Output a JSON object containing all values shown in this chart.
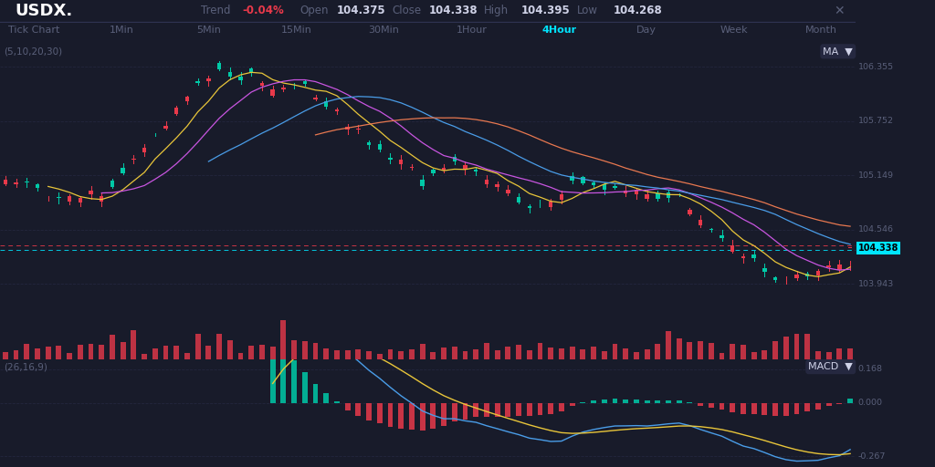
{
  "bg_color": "#181b2a",
  "header_bg": "#1e2235",
  "title": "USDX.",
  "trend_label": "Trend",
  "trend_value": "-0.04%",
  "open_label": "Open",
  "open_value": "104.375",
  "close_label": "Close",
  "close_value": "104.338",
  "high_label": "High",
  "high_value": "104.395",
  "low_label": "Low",
  "low_value": "104.268",
  "timeframes": [
    "Tick Chart",
    "1Min",
    "5Min",
    "15Min",
    "30Min",
    "1Hour",
    "4Hour",
    "Day",
    "Week",
    "Month"
  ],
  "active_tf": "4Hour",
  "ma_label": "(5,10,20,30)",
  "macd_label": "(26,16,9)",
  "price_levels": [
    106.355,
    105.752,
    105.149,
    104.546,
    103.943
  ],
  "current_price": 104.338,
  "macd_levels": [
    0.168,
    0.0,
    -0.267
  ],
  "text_color": "#d0d3e8",
  "text_dim": "#5a607a",
  "cyan_color": "#00e5ff",
  "red_color": "#e8394a",
  "green_color": "#00c9a7",
  "ma5_color": "#e8c53a",
  "ma10_color": "#c855e0",
  "ma20_color": "#4a9de8",
  "ma30_color": "#e87850",
  "macd_hist_green": "#00c9a7",
  "macd_hist_red": "#e8394a",
  "macd_line_color": "#4a9de8",
  "signal_line_color": "#e8c53a",
  "grid_color": "#252840",
  "dotted_red": "#e8394a",
  "dotted_cyan": "#00e5ff",
  "price_min": 103.65,
  "price_max": 106.65,
  "macd_min": -0.32,
  "macd_max": 0.22
}
